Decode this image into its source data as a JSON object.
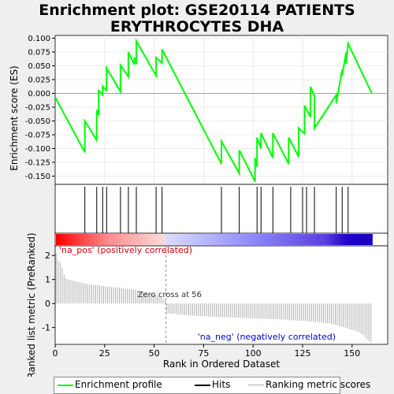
{
  "title_line1": "Enrichment plot: GSE20114 PATIENTS",
  "title_line2": "ERYTHROCYTES DHA",
  "chart_data": {
    "type": "line",
    "xlabel": "Rank in Ordered Dataset",
    "es_ylabel": "Enrichment score (ES)",
    "rank_ylabel": "Ranked list metric (PreRanked)",
    "xlim": [
      0,
      168
    ],
    "x_ticks": [
      0,
      25,
      50,
      75,
      100,
      125,
      150
    ],
    "es_ylim": [
      -0.165,
      0.105
    ],
    "es_ticks": [
      "0.100",
      "0.075",
      "0.050",
      "0.025",
      "0.000",
      "-0.025",
      "-0.050",
      "-0.075",
      "-0.100",
      "-0.125",
      "-0.150"
    ],
    "rank_ylim": [
      -1.7,
      2.4
    ],
    "rank_ticks": [
      2,
      1,
      0,
      -1
    ],
    "es_series": {
      "name": "Enrichment profile",
      "x": [
        0,
        15,
        15,
        21,
        21,
        22,
        22,
        24,
        24,
        26,
        26,
        33,
        33,
        37,
        37,
        40,
        40,
        41,
        41,
        51,
        51,
        54,
        54,
        84,
        84,
        93,
        93,
        101,
        101,
        102,
        102,
        104,
        104,
        110,
        110,
        118,
        118,
        123,
        123,
        126,
        126,
        129,
        129,
        131,
        131,
        142,
        142,
        145,
        145,
        147,
        147,
        148,
        148,
        160
      ],
      "y": [
        -0.007,
        -0.107,
        -0.05,
        -0.085,
        -0.03,
        -0.04,
        0.005,
        -0.003,
        0.013,
        0.005,
        0.046,
        0.003,
        0.051,
        0.03,
        0.075,
        0.052,
        0.065,
        0.053,
        0.095,
        0.032,
        0.065,
        0.055,
        0.08,
        -0.128,
        -0.087,
        -0.145,
        -0.103,
        -0.16,
        -0.117,
        -0.133,
        -0.08,
        -0.1,
        -0.072,
        -0.117,
        -0.072,
        -0.128,
        -0.08,
        -0.115,
        -0.063,
        -0.073,
        -0.022,
        -0.043,
        0.012,
        -0.005,
        -0.063,
        -0.003,
        -0.018,
        0.043,
        0.032,
        0.075,
        0.053,
        0.093,
        0.09,
        0.0
      ]
    },
    "hits": [
      15,
      21,
      24,
      26,
      33,
      37,
      41,
      51,
      54,
      84,
      93,
      102,
      104,
      110,
      119,
      125,
      127,
      131,
      142,
      145,
      148
    ],
    "rank_series": {
      "name": "Ranking metric scores",
      "values": [
        2.1,
        1.8,
        1.7,
        1.5,
        1.2,
        1.05,
        1.0,
        0.98,
        0.96,
        0.94,
        0.92,
        0.9,
        0.88,
        0.86,
        0.84,
        0.82,
        0.81,
        0.8,
        0.79,
        0.78,
        0.77,
        0.76,
        0.75,
        0.74,
        0.73,
        0.72,
        0.71,
        0.7,
        0.69,
        0.68,
        0.67,
        0.66,
        0.66,
        0.65,
        0.64,
        0.63,
        0.62,
        0.61,
        0.6,
        0.59,
        0.57,
        0.55,
        0.53,
        0.51,
        0.49,
        0.47,
        0.45,
        0.43,
        0.41,
        0.39,
        0.37,
        0.35,
        0.3,
        0.25,
        0.2,
        0.15,
        -0.4,
        -0.41,
        -0.42,
        -0.43,
        -0.44,
        -0.45,
        -0.46,
        -0.47,
        -0.48,
        -0.48,
        -0.49,
        -0.49,
        -0.5,
        -0.5,
        -0.51,
        -0.51,
        -0.52,
        -0.52,
        -0.53,
        -0.53,
        -0.54,
        -0.54,
        -0.55,
        -0.55,
        -0.55,
        -0.56,
        -0.56,
        -0.56,
        -0.57,
        -0.57,
        -0.57,
        -0.58,
        -0.58,
        -0.58,
        -0.59,
        -0.59,
        -0.59,
        -0.6,
        -0.6,
        -0.6,
        -0.61,
        -0.61,
        -0.61,
        -0.62,
        -0.62,
        -0.62,
        -0.63,
        -0.63,
        -0.63,
        -0.64,
        -0.64,
        -0.64,
        -0.65,
        -0.65,
        -0.65,
        -0.66,
        -0.66,
        -0.66,
        -0.67,
        -0.67,
        -0.68,
        -0.68,
        -0.69,
        -0.69,
        -0.7,
        -0.7,
        -0.71,
        -0.71,
        -0.72,
        -0.72,
        -0.73,
        -0.73,
        -0.74,
        -0.74,
        -0.75,
        -0.76,
        -0.77,
        -0.78,
        -0.79,
        -0.8,
        -0.81,
        -0.82,
        -0.83,
        -0.85,
        -0.87,
        -0.89,
        -0.91,
        -0.93,
        -0.95,
        -0.97,
        -1.0,
        -1.02,
        -1.05,
        -1.08,
        -1.1,
        -1.13,
        -1.16,
        -1.2,
        -1.25,
        -1.3,
        -1.4,
        -1.5,
        -1.55,
        -1.6
      ]
    },
    "zero_cross_label": "Zero cross at 56",
    "zero_cross": 56,
    "pos_label": "'na_pos' (positively correlated)",
    "neg_label": "'na_neg' (negatively correlated)",
    "legend_placement": "bottom",
    "legend": [
      "Enrichment profile",
      "Hits",
      "Ranking metric scores"
    ],
    "colors": {
      "profile": "#00ff00",
      "hits": "#000000",
      "rank": "#b0b0b0",
      "pos": "#cc0000",
      "neg": "#0000cc"
    }
  }
}
